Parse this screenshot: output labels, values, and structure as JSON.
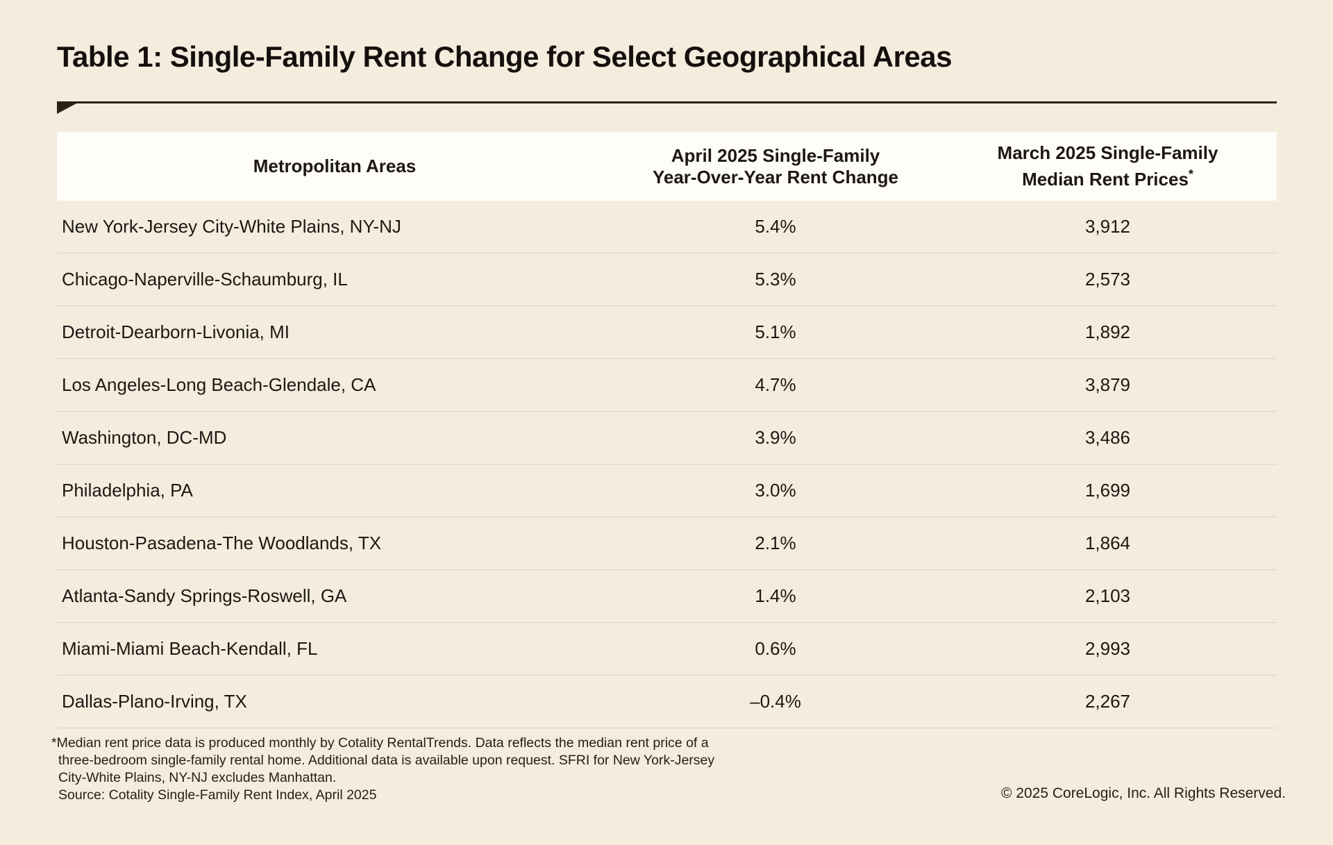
{
  "title": "Table 1: Single-Family Rent Change for Select Geographical Areas",
  "table": {
    "columns": {
      "metro": "Metropolitan Areas",
      "change_line1": "April 2025 Single-Family",
      "change_line2": "Year-Over-Year Rent Change",
      "rent_line1": "March 2025 Single-Family",
      "rent_line2": "Median Rent Prices",
      "rent_superscript": "*"
    },
    "rows": [
      {
        "metro": "New York-Jersey City-White Plains, NY-NJ",
        "change": "5.4%",
        "rent": "3,912"
      },
      {
        "metro": "Chicago-Naperville-Schaumburg, IL",
        "change": "5.3%",
        "rent": "2,573"
      },
      {
        "metro": "Detroit-Dearborn-Livonia, MI",
        "change": "5.1%",
        "rent": "1,892"
      },
      {
        "metro": "Los Angeles-Long Beach-Glendale, CA",
        "change": "4.7%",
        "rent": "3,879"
      },
      {
        "metro": "Washington, DC-MD",
        "change": "3.9%",
        "rent": "3,486"
      },
      {
        "metro": "Philadelphia, PA",
        "change": "3.0%",
        "rent": "1,699"
      },
      {
        "metro": "Houston-Pasadena-The Woodlands, TX",
        "change": "2.1%",
        "rent": "1,864"
      },
      {
        "metro": "Atlanta-Sandy Springs-Roswell, GA",
        "change": "1.4%",
        "rent": "2,103"
      },
      {
        "metro": "Miami-Miami Beach-Kendall, FL",
        "change": "0.6%",
        "rent": "2,993"
      },
      {
        "metro": "Dallas-Plano-Irving, TX",
        "change": "–0.4%",
        "rent": "2,267"
      }
    ]
  },
  "footnote": {
    "marker": "*",
    "line1": "Median rent price data is produced monthly by Cotality RentalTrends. Data reflects the median rent price of a",
    "line2": "three-bedroom single-family rental home. Additional data is available upon request. SFRI for New York-Jersey",
    "line3": "City-White Plains, NY-NJ excludes Manhattan.",
    "source": "Source: Cotality Single-Family Rent Index, April 2025"
  },
  "copyright": "© 2025 CoreLogic, Inc. All Rights Reserved.",
  "colors": {
    "background": "#f4edde",
    "header_bg": "#fefdfa",
    "title_text": "#15100d",
    "body_text": "#1d1713",
    "divider": "#dad2c2",
    "rule": "#2d2216"
  },
  "chart_data": {
    "type": "table",
    "title": "Table 1: Single-Family Rent Change for Select Geographical Areas",
    "columns": [
      "Metropolitan Areas",
      "April 2025 Single-Family Year-Over-Year Rent Change",
      "March 2025 Single-Family Median Rent Prices*"
    ],
    "rows": [
      [
        "New York-Jersey City-White Plains, NY-NJ",
        5.4,
        3912
      ],
      [
        "Chicago-Naperville-Schaumburg, IL",
        5.3,
        2573
      ],
      [
        "Detroit-Dearborn-Livonia, MI",
        5.1,
        1892
      ],
      [
        "Los Angeles-Long Beach-Glendale, CA",
        4.7,
        3879
      ],
      [
        "Washington, DC-MD",
        3.9,
        3486
      ],
      [
        "Philadelphia, PA",
        3.0,
        1699
      ],
      [
        "Houston-Pasadena-The Woodlands, TX",
        2.1,
        1864
      ],
      [
        "Atlanta-Sandy Springs-Roswell, GA",
        1.4,
        2103
      ],
      [
        "Miami-Miami Beach-Kendall, FL",
        0.6,
        2993
      ],
      [
        "Dallas-Plano-Irving, TX",
        -0.4,
        2267
      ]
    ],
    "units": {
      "rent_change": "percent year-over-year",
      "median_rent": "USD, median, three-bedroom single-family rental"
    }
  }
}
